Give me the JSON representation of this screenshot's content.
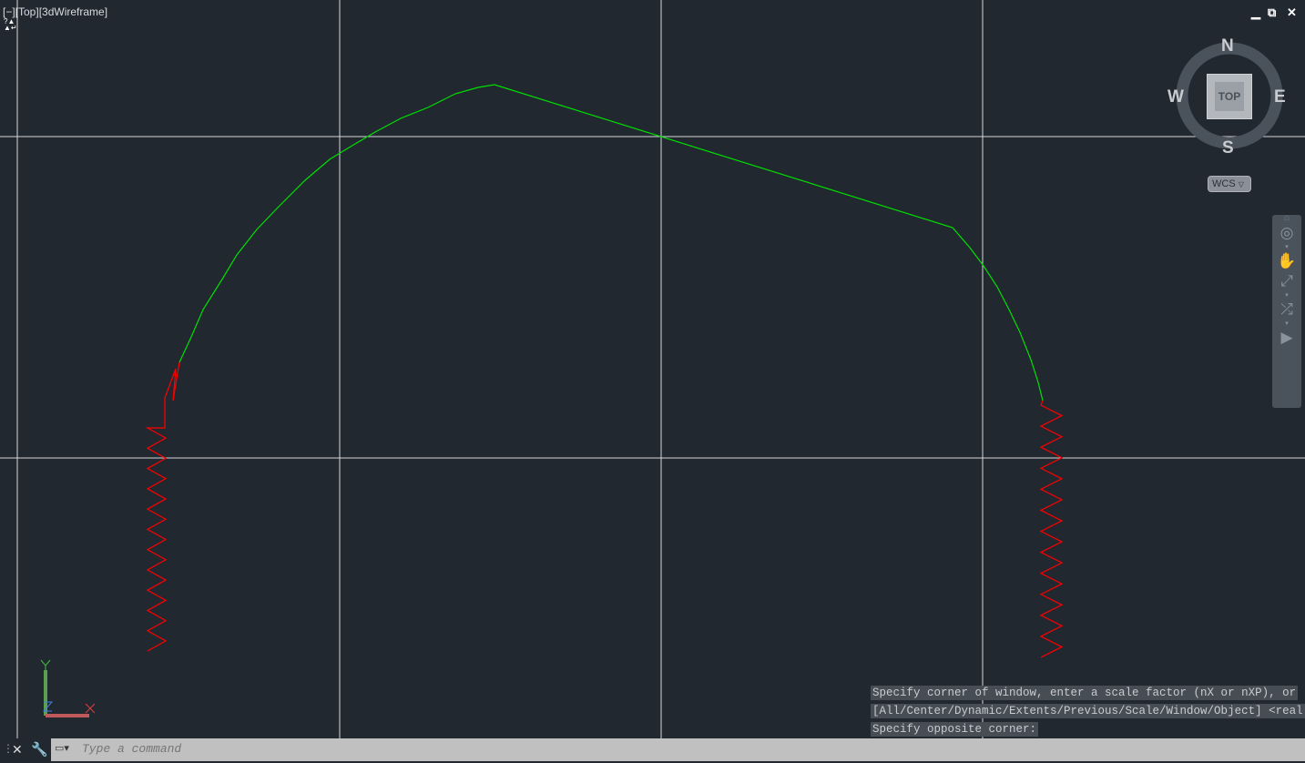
{
  "viewport": {
    "label": "[−][Top][3dWireframe]",
    "background": "#212830"
  },
  "window_controls": {
    "minimize": "▁",
    "restore": "⧉",
    "close": "✕"
  },
  "viewcube": {
    "north": "N",
    "south": "S",
    "east": "E",
    "west": "W",
    "face": "TOP",
    "coord_system": "WCS"
  },
  "navbar": {
    "icons": [
      "steering-wheel-icon",
      "pan-icon",
      "zoom-extents-icon",
      "orbit-icon",
      "showmotion-icon"
    ]
  },
  "ucs": {
    "x": "X",
    "y": "Y",
    "z": "Z"
  },
  "colors": {
    "polyline": "#00e000",
    "spline": "#ff0000",
    "grid": "#d8d8d8"
  },
  "command_history": [
    "Specify corner of window, enter a scale factor (nX or nXP), or",
    "[All/Center/Dynamic/Extents/Previous/Scale/Window/Object] <real time>:",
    "Specify opposite corner:"
  ],
  "command_line": {
    "placeholder": "Type a command",
    "value": ""
  }
}
